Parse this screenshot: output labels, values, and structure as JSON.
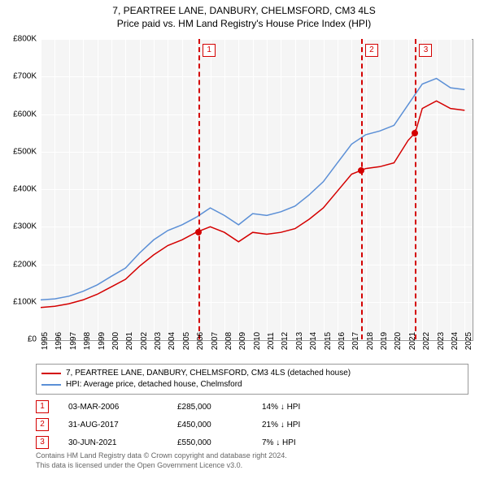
{
  "title_line1": "7, PEARTREE LANE, DANBURY, CHELMSFORD, CM3 4LS",
  "title_line2": "Price paid vs. HM Land Registry's House Price Index (HPI)",
  "chart": {
    "type": "line",
    "background_color": "#f5f5f5",
    "grid_color": "#ffffff",
    "border_color": "#999999",
    "ylim": [
      0,
      800000
    ],
    "ytick_step": 100000,
    "yticks": [
      "£0",
      "£100K",
      "£200K",
      "£300K",
      "£400K",
      "£500K",
      "£600K",
      "£700K",
      "£800K"
    ],
    "xlim": [
      1995,
      2025.5
    ],
    "xticks": [
      "1995",
      "1996",
      "1997",
      "1998",
      "1999",
      "2000",
      "2001",
      "2002",
      "2003",
      "2004",
      "2005",
      "2006",
      "2007",
      "2008",
      "2009",
      "2010",
      "2011",
      "2012",
      "2013",
      "2014",
      "2015",
      "2016",
      "2017",
      "2018",
      "2019",
      "2020",
      "2021",
      "2022",
      "2023",
      "2024",
      "2025"
    ],
    "label_fontsize": 10,
    "series": {
      "property": {
        "label": "7, PEARTREE LANE, DANBURY, CHELMSFORD, CM3 4LS (detached house)",
        "color": "#d40000",
        "line_width": 1.5,
        "points": [
          [
            1995,
            85000
          ],
          [
            1996,
            88000
          ],
          [
            1997,
            95000
          ],
          [
            1998,
            105000
          ],
          [
            1999,
            120000
          ],
          [
            2000,
            140000
          ],
          [
            2001,
            160000
          ],
          [
            2002,
            195000
          ],
          [
            2003,
            225000
          ],
          [
            2004,
            250000
          ],
          [
            2005,
            265000
          ],
          [
            2006,
            285000
          ],
          [
            2007,
            300000
          ],
          [
            2008,
            285000
          ],
          [
            2009,
            260000
          ],
          [
            2010,
            285000
          ],
          [
            2011,
            280000
          ],
          [
            2012,
            285000
          ],
          [
            2013,
            295000
          ],
          [
            2014,
            320000
          ],
          [
            2015,
            350000
          ],
          [
            2016,
            395000
          ],
          [
            2017,
            440000
          ],
          [
            2017.67,
            450000
          ],
          [
            2018,
            455000
          ],
          [
            2019,
            460000
          ],
          [
            2020,
            470000
          ],
          [
            2021,
            530000
          ],
          [
            2021.5,
            550000
          ],
          [
            2022,
            615000
          ],
          [
            2023,
            635000
          ],
          [
            2024,
            615000
          ],
          [
            2025,
            610000
          ]
        ]
      },
      "hpi": {
        "label": "HPI: Average price, detached house, Chelmsford",
        "color": "#5b8fd6",
        "line_width": 1.5,
        "points": [
          [
            1995,
            105000
          ],
          [
            1996,
            108000
          ],
          [
            1997,
            115000
          ],
          [
            1998,
            128000
          ],
          [
            1999,
            145000
          ],
          [
            2000,
            168000
          ],
          [
            2001,
            190000
          ],
          [
            2002,
            230000
          ],
          [
            2003,
            265000
          ],
          [
            2004,
            290000
          ],
          [
            2005,
            305000
          ],
          [
            2006,
            325000
          ],
          [
            2007,
            350000
          ],
          [
            2008,
            330000
          ],
          [
            2009,
            305000
          ],
          [
            2010,
            335000
          ],
          [
            2011,
            330000
          ],
          [
            2012,
            340000
          ],
          [
            2013,
            355000
          ],
          [
            2014,
            385000
          ],
          [
            2015,
            420000
          ],
          [
            2016,
            470000
          ],
          [
            2017,
            520000
          ],
          [
            2018,
            545000
          ],
          [
            2019,
            555000
          ],
          [
            2020,
            570000
          ],
          [
            2021,
            625000
          ],
          [
            2022,
            680000
          ],
          [
            2023,
            695000
          ],
          [
            2024,
            670000
          ],
          [
            2025,
            665000
          ]
        ]
      }
    },
    "event_markers": [
      {
        "num": "1",
        "x": 2006.17,
        "y": 285000,
        "line_color": "#d40000",
        "box_border": "#d40000",
        "dot_color": "#d40000"
      },
      {
        "num": "2",
        "x": 2017.67,
        "y": 450000,
        "line_color": "#d40000",
        "box_border": "#d40000",
        "dot_color": "#d40000"
      },
      {
        "num": "3",
        "x": 2021.5,
        "y": 550000,
        "line_color": "#d40000",
        "box_border": "#d40000",
        "dot_color": "#d40000"
      }
    ]
  },
  "legend": {
    "rows": [
      {
        "color": "#d40000",
        "label": "7, PEARTREE LANE, DANBURY, CHELMSFORD, CM3 4LS (detached house)"
      },
      {
        "color": "#5b8fd6",
        "label": "HPI: Average price, detached house, Chelmsford"
      }
    ]
  },
  "events_table": [
    {
      "num": "1",
      "border": "#d40000",
      "date": "03-MAR-2006",
      "price": "£285,000",
      "pct": "14% ↓ HPI"
    },
    {
      "num": "2",
      "border": "#d40000",
      "date": "31-AUG-2017",
      "price": "£450,000",
      "pct": "21% ↓ HPI"
    },
    {
      "num": "3",
      "border": "#d40000",
      "date": "30-JUN-2021",
      "price": "£550,000",
      "pct": "7% ↓ HPI"
    }
  ],
  "footnote_line1": "Contains HM Land Registry data © Crown copyright and database right 2024.",
  "footnote_line2": "This data is licensed under the Open Government Licence v3.0."
}
